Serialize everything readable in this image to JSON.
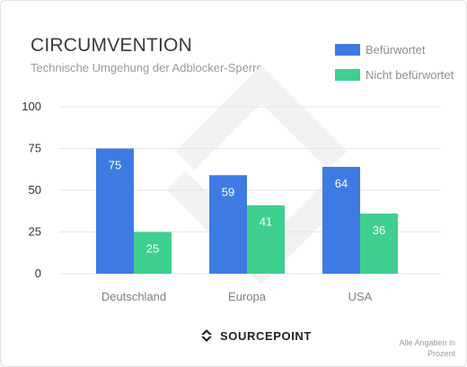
{
  "title": "CIRCUMVENTION",
  "subtitle": "Technische Umgehung der Adblocker-Sperre",
  "brand": "SOURCEPOINT",
  "note": "Alle Angaben in Prozent",
  "colors": {
    "befuerwortet": "#3d7be2",
    "nicht": "#3fcf8e"
  },
  "chart_data": {
    "type": "bar",
    "title": "CIRCUMVENTION",
    "subtitle": "Technische Umgehung der Adblocker-Sperre",
    "categories": [
      "Deutschland",
      "Europa",
      "USA"
    ],
    "series": [
      {
        "name": "Befürwortet",
        "values": [
          75,
          59,
          64
        ]
      },
      {
        "name": "Nicht befürwortet",
        "values": [
          25,
          41,
          36
        ]
      }
    ],
    "yticks": [
      0,
      25,
      50,
      75,
      100
    ],
    "ylim": [
      0,
      100
    ],
    "grid": true,
    "legend": "top-right"
  }
}
